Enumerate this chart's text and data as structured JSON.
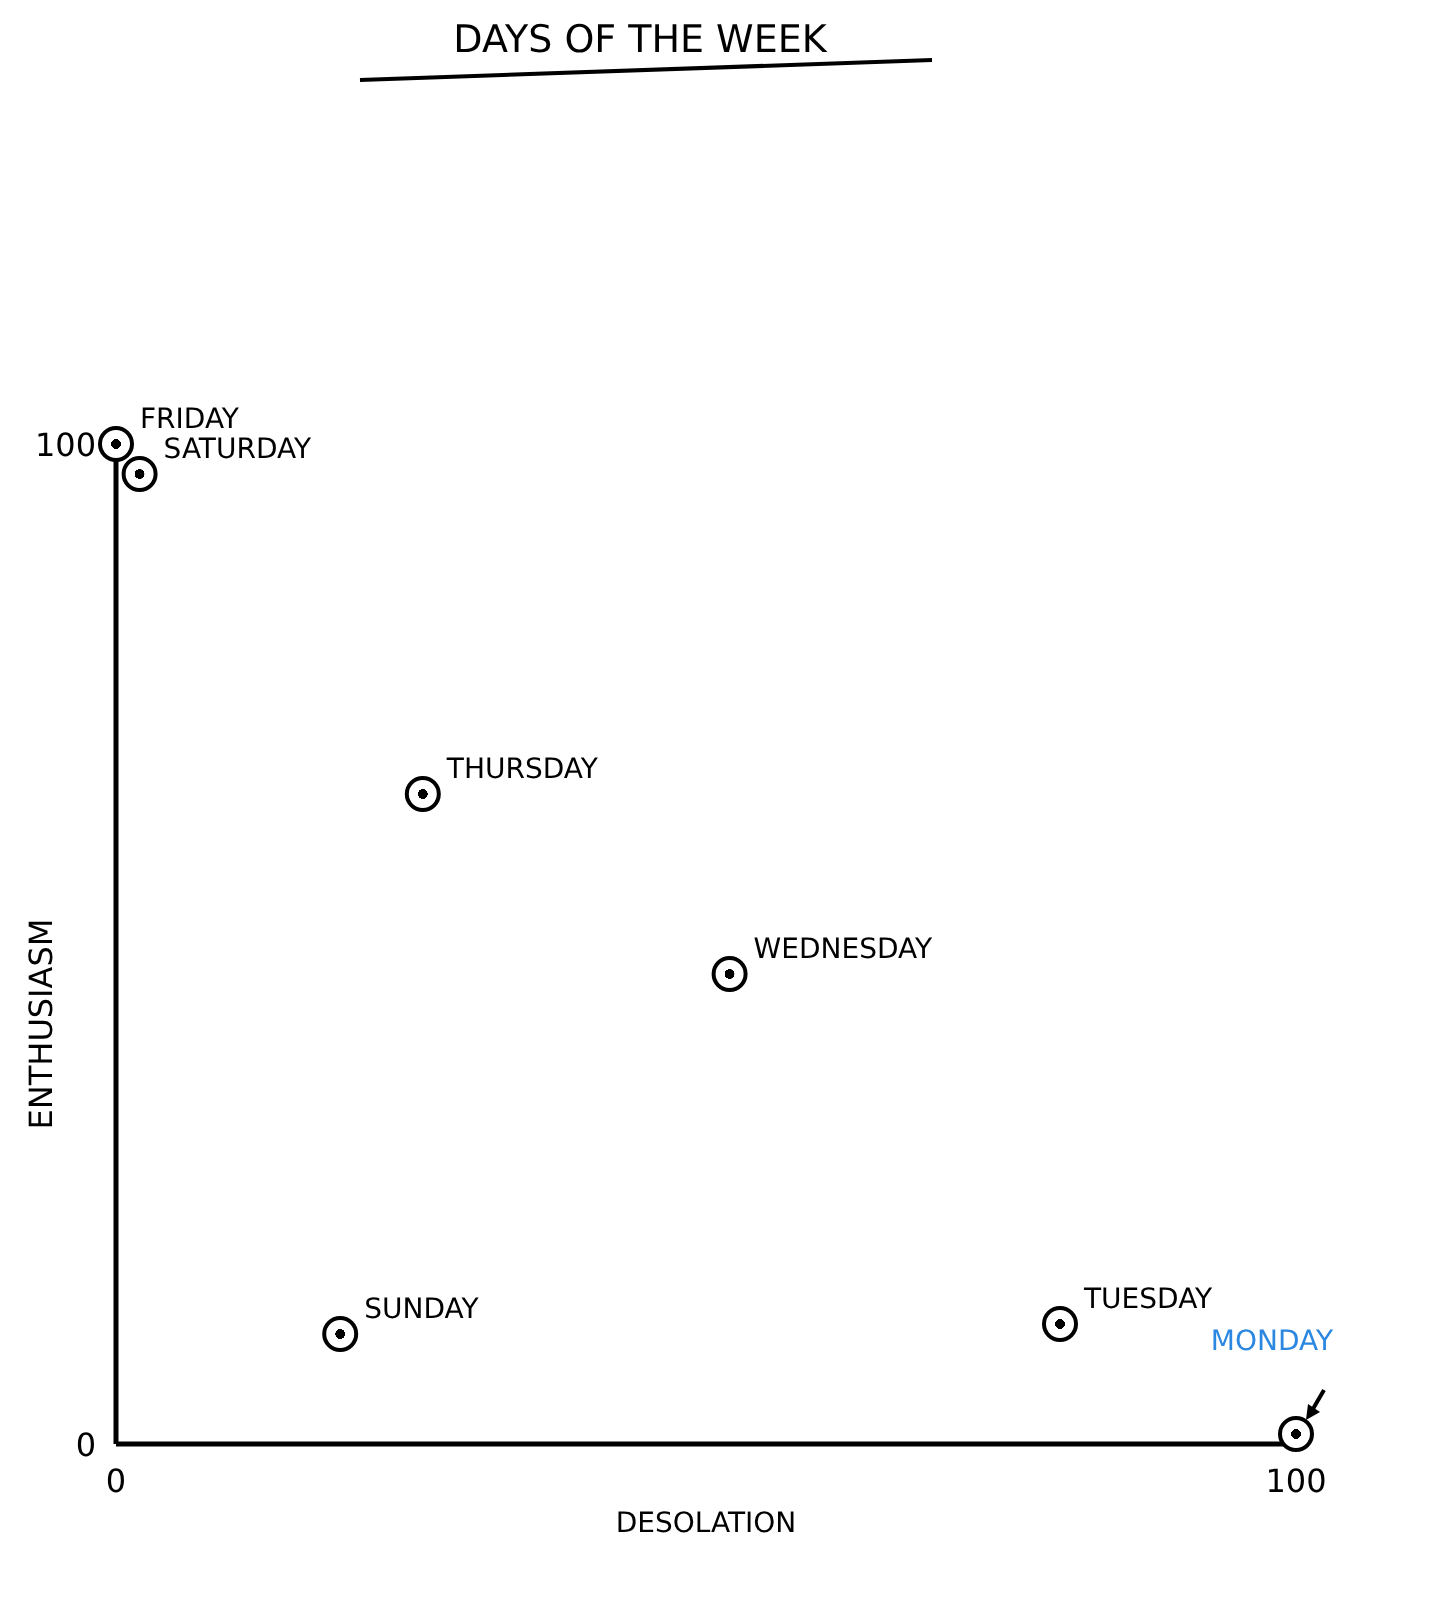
{
  "chart_data": {
    "type": "scatter",
    "title": "DAYS OF THE WEEK",
    "xlabel": "DESOLATION",
    "ylabel": "ENTHUSIASM",
    "x": [
      0,
      2,
      26,
      52,
      19,
      80,
      100
    ],
    "series": [
      {
        "color": "#000000",
        "values": [
          100,
          97,
          65,
          47,
          11,
          12,
          1
        ]
      }
    ],
    "xlim": [
      0,
      100
    ],
    "ylim": [
      0,
      100
    ],
    "xticks": [
      0,
      100
    ],
    "yticks": [
      0,
      100
    ],
    "marker": "circle",
    "grid": false,
    "annotations": [
      {
        "text": "FRIDAY",
        "x": 0,
        "y": 100
      },
      {
        "text": "SATURDAY",
        "x": 2,
        "y": 97
      },
      {
        "text": "THURSDAY",
        "x": 26,
        "y": 65
      },
      {
        "text": "WEDNESDAY",
        "x": 52,
        "y": 47
      },
      {
        "text": "SUNDAY",
        "x": 19,
        "y": 11
      },
      {
        "text": "TUESDAY",
        "x": 80,
        "y": 12
      },
      {
        "text": "MONDAY",
        "x": 100,
        "y": 1
      }
    ]
  }
}
